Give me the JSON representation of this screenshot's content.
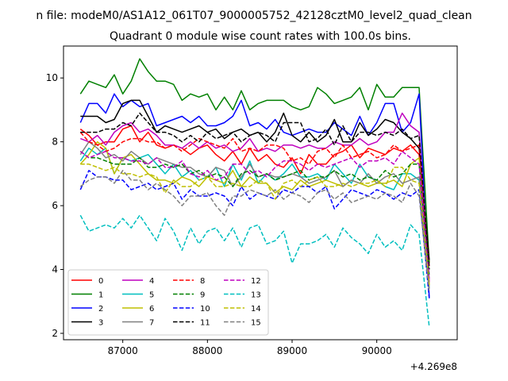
{
  "figure": {
    "suptitle": "n file: modeM0/AS1A12_061T07_9000005752_42128cztM0_level2_quad_clean",
    "title": "Quadrant 0 module wise count rates with 100.0s bins."
  },
  "chart_data": {
    "type": "line",
    "title": "Quadrant 0 module wise count rates with 100.0s bins.",
    "xlabel": "",
    "ylabel": "",
    "x_offset_label": "+4.269e8",
    "x_offset": 426900000,
    "xlim": [
      86300,
      90950
    ],
    "ylim": [
      1.8,
      11.0
    ],
    "xticks": [
      87000,
      88000,
      89000,
      90000
    ],
    "xtick_labels": [
      "87000",
      "88000",
      "89000",
      "90000"
    ],
    "yticks": [
      2,
      4,
      6,
      8,
      10
    ],
    "ytick_labels": [
      "2",
      "4",
      "6",
      "8",
      "10"
    ],
    "grid": false,
    "legend": {
      "position": "lower-left",
      "columns": 4
    },
    "x": [
      86500,
      86600,
      86700,
      86800,
      86900,
      87000,
      87100,
      87200,
      87300,
      87400,
      87500,
      87600,
      87700,
      87800,
      87900,
      88000,
      88100,
      88200,
      88300,
      88400,
      88500,
      88600,
      88700,
      88800,
      88900,
      89000,
      89100,
      89200,
      89300,
      89400,
      89500,
      89600,
      89700,
      89800,
      89900,
      90000,
      90100,
      90200,
      90300,
      90400,
      90500,
      90620
    ],
    "series": [
      {
        "name": "0",
        "color": "#ff0000",
        "dash": "solid",
        "values": [
          8.4,
          8.2,
          7.9,
          8.0,
          8.0,
          8.4,
          8.5,
          8.0,
          8.3,
          7.9,
          7.8,
          7.9,
          7.8,
          7.6,
          7.8,
          7.9,
          7.6,
          7.4,
          7.7,
          7.3,
          7.8,
          7.4,
          7.6,
          7.3,
          7.2,
          7.5,
          7.0,
          7.6,
          7.3,
          7.3,
          7.6,
          7.7,
          7.9,
          7.5,
          7.8,
          7.7,
          7.6,
          7.8,
          7.7,
          7.9,
          7.6,
          4.2
        ]
      },
      {
        "name": "1",
        "color": "#008000",
        "dash": "solid",
        "values": [
          9.5,
          9.9,
          9.8,
          9.7,
          10.1,
          9.5,
          9.9,
          10.6,
          10.2,
          9.9,
          9.9,
          9.8,
          9.3,
          9.5,
          9.4,
          9.5,
          9.0,
          9.4,
          9.0,
          9.6,
          9.0,
          9.2,
          9.3,
          9.3,
          9.3,
          9.1,
          9.0,
          9.1,
          9.7,
          9.5,
          9.2,
          9.3,
          9.4,
          9.7,
          9.0,
          9.8,
          9.4,
          9.4,
          9.7,
          9.7,
          9.7,
          4.2
        ]
      },
      {
        "name": "2",
        "color": "#0000ff",
        "dash": "solid",
        "values": [
          8.6,
          9.2,
          9.2,
          8.9,
          9.5,
          9.1,
          9.3,
          9.1,
          9.2,
          8.5,
          8.6,
          8.7,
          8.8,
          8.6,
          8.8,
          8.5,
          8.5,
          8.6,
          8.8,
          9.3,
          8.5,
          8.6,
          8.4,
          8.7,
          8.3,
          8.2,
          8.3,
          8.4,
          8.3,
          8.3,
          8.6,
          8.4,
          8.2,
          8.8,
          8.2,
          8.6,
          9.2,
          9.2,
          8.3,
          8.6,
          9.5,
          3.1
        ]
      },
      {
        "name": "3",
        "color": "#000000",
        "dash": "solid",
        "values": [
          8.8,
          8.8,
          8.8,
          8.6,
          8.7,
          9.2,
          9.3,
          9.3,
          8.8,
          8.3,
          8.5,
          8.4,
          8.3,
          8.4,
          8.5,
          8.3,
          8.4,
          8.1,
          8.3,
          8.4,
          8.2,
          8.3,
          8.0,
          8.3,
          8.9,
          8.2,
          8.0,
          8.3,
          8.0,
          8.2,
          8.7,
          8.0,
          8.0,
          8.6,
          8.2,
          8.4,
          8.7,
          8.6,
          8.3,
          8.1,
          7.8,
          4.3
        ]
      },
      {
        "name": "4",
        "color": "#bf00bf",
        "dash": "solid",
        "values": [
          8.1,
          8.0,
          8.2,
          7.9,
          8.3,
          8.5,
          8.6,
          8.3,
          8.4,
          8.2,
          7.9,
          7.9,
          7.8,
          8.0,
          7.8,
          8.0,
          7.8,
          7.9,
          7.7,
          7.8,
          8.1,
          7.7,
          7.8,
          7.7,
          7.9,
          7.9,
          7.8,
          7.9,
          7.8,
          7.8,
          8.0,
          7.9,
          7.9,
          8.1,
          7.9,
          8.0,
          8.3,
          8.3,
          8.9,
          8.5,
          8.3,
          3.6
        ]
      },
      {
        "name": "5",
        "color": "#00bfbf",
        "dash": "solid",
        "values": [
          7.4,
          7.8,
          7.6,
          7.8,
          7.0,
          7.5,
          7.4,
          7.5,
          7.6,
          7.3,
          7.0,
          7.3,
          6.9,
          7.1,
          6.8,
          6.9,
          7.2,
          6.6,
          7.3,
          6.8,
          7.4,
          6.7,
          7.0,
          6.8,
          7.0,
          7.3,
          6.9,
          6.9,
          7.0,
          6.8,
          7.3,
          7.0,
          6.7,
          7.3,
          6.9,
          6.8,
          6.6,
          6.5,
          7.0,
          7.0,
          6.8,
          3.4
        ]
      },
      {
        "name": "6",
        "color": "#bfbf00",
        "dash": "solid",
        "values": [
          7.3,
          7.6,
          8.0,
          7.8,
          7.0,
          7.5,
          7.6,
          7.3,
          7.0,
          6.8,
          6.8,
          6.7,
          6.9,
          6.8,
          6.6,
          6.9,
          6.8,
          6.7,
          7.1,
          6.6,
          6.9,
          6.7,
          6.7,
          6.4,
          6.6,
          6.5,
          6.8,
          6.6,
          6.7,
          6.8,
          6.7,
          6.6,
          6.8,
          6.7,
          6.6,
          6.7,
          6.7,
          6.8,
          6.6,
          7.3,
          7.5,
          3.5
        ]
      },
      {
        "name": "7",
        "color": "#808080",
        "dash": "solid",
        "values": [
          7.6,
          8.0,
          7.8,
          7.5,
          7.6,
          7.4,
          7.7,
          7.5,
          7.3,
          7.5,
          7.4,
          7.3,
          7.2,
          7.2,
          7.0,
          6.9,
          7.2,
          7.1,
          6.6,
          6.9,
          7.3,
          6.9,
          7.0,
          6.9,
          6.9,
          7.0,
          6.9,
          6.7,
          6.8,
          6.9,
          7.1,
          6.6,
          6.8,
          6.7,
          7.0,
          6.7,
          6.9,
          7.0,
          6.7,
          6.8,
          6.9,
          3.4
        ]
      },
      {
        "name": "8",
        "color": "#ff0000",
        "dash": "dashed",
        "values": [
          8.3,
          8.0,
          7.9,
          7.7,
          7.8,
          8.0,
          8.1,
          8.1,
          8.0,
          8.0,
          7.8,
          7.9,
          7.7,
          7.9,
          8.1,
          8.0,
          7.9,
          7.8,
          8.1,
          7.7,
          7.8,
          7.7,
          7.9,
          7.9,
          7.8,
          7.4,
          7.5,
          7.3,
          7.7,
          7.8,
          7.5,
          7.9,
          7.5,
          7.6,
          7.7,
          7.5,
          7.6,
          7.9,
          7.7,
          7.8,
          7.9,
          4.1
        ]
      },
      {
        "name": "9",
        "color": "#008000",
        "dash": "dashed",
        "values": [
          7.7,
          7.5,
          7.5,
          7.4,
          7.3,
          7.3,
          7.3,
          7.5,
          7.2,
          7.2,
          7.3,
          7.2,
          7.3,
          7.0,
          7.1,
          6.9,
          7.0,
          6.9,
          6.6,
          7.0,
          7.1,
          6.9,
          7.0,
          6.8,
          6.9,
          7.0,
          7.1,
          6.8,
          6.9,
          6.9,
          7.1,
          6.9,
          7.0,
          6.8,
          6.9,
          6.8,
          7.1,
          6.9,
          7.0,
          7.3,
          7.3,
          3.8
        ]
      },
      {
        "name": "10",
        "color": "#0000ff",
        "dash": "dashed",
        "values": [
          6.5,
          7.1,
          6.9,
          6.9,
          6.8,
          6.8,
          6.5,
          6.6,
          6.7,
          6.5,
          6.6,
          6.7,
          6.2,
          6.5,
          6.3,
          6.3,
          6.4,
          6.3,
          6.0,
          6.6,
          6.2,
          6.4,
          6.3,
          6.2,
          6.5,
          6.4,
          6.6,
          6.6,
          6.4,
          6.6,
          5.9,
          6.2,
          6.5,
          6.4,
          6.3,
          6.5,
          6.4,
          6.2,
          6.4,
          6.3,
          6.5,
          3.1
        ]
      },
      {
        "name": "11",
        "color": "#000000",
        "dash": "dashed",
        "values": [
          8.3,
          8.3,
          8.3,
          8.4,
          8.4,
          8.6,
          8.5,
          8.9,
          8.6,
          8.3,
          8.3,
          8.2,
          8.0,
          8.2,
          8.0,
          8.3,
          8.1,
          8.2,
          8.3,
          8.0,
          8.2,
          8.3,
          8.2,
          8.0,
          8.6,
          8.6,
          8.6,
          8.0,
          8.1,
          8.4,
          7.9,
          8.5,
          8.0,
          8.3,
          8.3,
          8.2,
          8.3,
          8.2,
          8.4,
          8.1,
          8.2,
          4.0
        ]
      },
      {
        "name": "12",
        "color": "#bf00bf",
        "dash": "dashed",
        "values": [
          7.7,
          7.5,
          7.6,
          7.7,
          7.5,
          7.5,
          7.4,
          7.4,
          7.3,
          7.5,
          7.2,
          7.2,
          7.4,
          7.0,
          6.9,
          7.1,
          6.8,
          6.9,
          7.3,
          7.3,
          7.0,
          7.1,
          6.9,
          7.2,
          7.4,
          7.4,
          7.3,
          7.1,
          7.3,
          7.2,
          7.3,
          7.4,
          7.5,
          7.2,
          7.4,
          7.4,
          7.5,
          7.3,
          7.7,
          7.5,
          7.3,
          3.7
        ]
      },
      {
        "name": "13",
        "color": "#00bfbf",
        "dash": "dashed",
        "values": [
          5.7,
          5.2,
          5.3,
          5.4,
          5.3,
          5.6,
          5.3,
          5.7,
          5.3,
          4.9,
          5.6,
          5.2,
          4.6,
          5.3,
          4.8,
          5.2,
          5.3,
          4.9,
          5.3,
          4.7,
          5.3,
          5.4,
          4.8,
          4.9,
          5.2,
          4.2,
          4.8,
          4.8,
          4.9,
          5.1,
          4.7,
          5.3,
          5.0,
          4.8,
          4.5,
          5.1,
          4.7,
          4.9,
          4.6,
          5.4,
          5.1,
          2.2
        ]
      },
      {
        "name": "14",
        "color": "#bfbf00",
        "dash": "dashed",
        "values": [
          7.3,
          7.3,
          7.2,
          7.1,
          7.2,
          7.0,
          7.0,
          6.9,
          7.0,
          6.9,
          6.4,
          6.8,
          6.6,
          6.6,
          6.8,
          6.9,
          6.6,
          6.6,
          6.7,
          6.6,
          6.6,
          6.8,
          6.7,
          6.2,
          6.7,
          6.8,
          6.6,
          6.8,
          6.9,
          6.6,
          6.6,
          6.7,
          6.6,
          6.7,
          6.7,
          6.8,
          6.6,
          7.2,
          7.2,
          6.8,
          6.7,
          3.5
        ]
      },
      {
        "name": "15",
        "color": "#808080",
        "dash": "dashed",
        "values": [
          6.6,
          6.8,
          6.9,
          6.9,
          6.7,
          7.1,
          6.8,
          6.8,
          6.5,
          6.7,
          6.5,
          6.3,
          6.0,
          6.3,
          6.3,
          6.4,
          6.0,
          5.7,
          6.3,
          6.3,
          6.5,
          6.4,
          6.3,
          6.5,
          6.2,
          6.4,
          6.3,
          6.1,
          6.4,
          6.5,
          6.2,
          6.4,
          6.1,
          6.2,
          6.3,
          6.2,
          6.4,
          6.3,
          6.1,
          6.7,
          6.3,
          3.3
        ]
      }
    ]
  }
}
